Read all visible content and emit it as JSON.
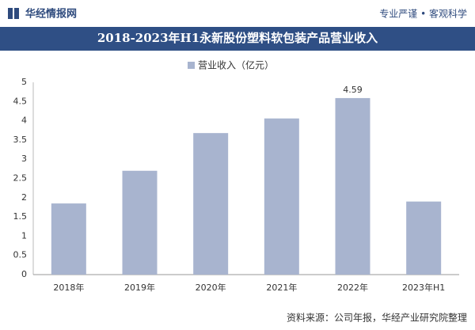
{
  "header": {
    "brand": "华经情报网",
    "slogan": "专业严谨 • 客观科学"
  },
  "chart_data": {
    "type": "bar",
    "title": "2018-2023年H1永新股份塑料软包装产品营业收入",
    "categories": [
      "2018年",
      "2019年",
      "2020年",
      "2021年",
      "2022年",
      "2023年H1"
    ],
    "series": [
      {
        "name": "营业收入（亿元）",
        "color": "#a8b4cf",
        "values": [
          1.85,
          2.7,
          3.68,
          4.06,
          4.59,
          1.9
        ]
      }
    ],
    "data_labels": [
      4
    ],
    "ylim": [
      0,
      5
    ],
    "yticks": [
      0,
      0.5,
      1,
      1.5,
      2,
      2.5,
      3,
      3.5,
      4,
      4.5,
      5
    ],
    "grid": false
  },
  "footer": {
    "source": "资料来源：公司年报，华经产业研究院整理"
  }
}
